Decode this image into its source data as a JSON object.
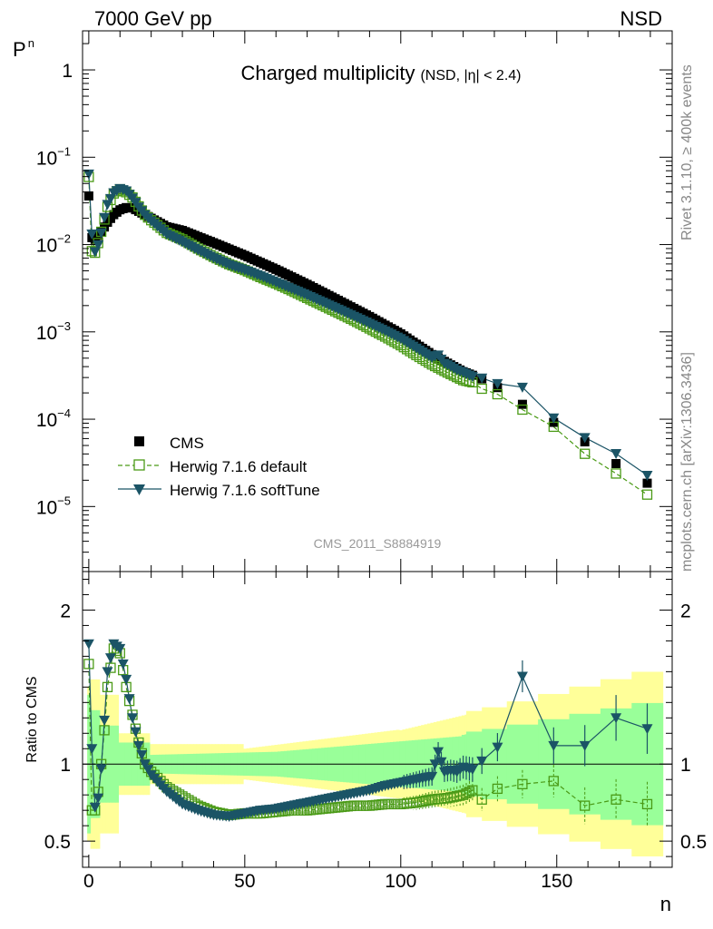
{
  "header": {
    "left": "7000 GeV pp",
    "right": "NSD"
  },
  "side_labels": {
    "rivet": "Rivet 3.1.10, ≥ 400k events",
    "mcplots": "mcplots.cern.ch [arXiv:1306.3436]"
  },
  "chart_data": {
    "type": "scatter",
    "title": "Charged multiplicity",
    "subtitle": "(NSD, |η| < 2.4)",
    "analysis_tag": "CMS_2011_S8884919",
    "xlabel": "n",
    "ylabel_main": "P",
    "ylabel_main_sub": "n",
    "ylabel_ratio": "Ratio to CMS",
    "xlim": [
      -2,
      187
    ],
    "ylim_main": [
      1.8e-06,
      2.8
    ],
    "ylim_ratio": [
      0.33,
      2.25
    ],
    "log_y_main": true,
    "x_ticks": [
      "0",
      "50",
      "100",
      "150"
    ],
    "y_ticks_main": [
      {
        "mant": "10",
        "exp": "−5",
        "value": 1e-05
      },
      {
        "mant": "10",
        "exp": "−4",
        "value": 0.0001
      },
      {
        "mant": "10",
        "exp": "−3",
        "value": 0.001
      },
      {
        "mant": "10",
        "exp": "−2",
        "value": 0.01
      },
      {
        "mant": "10",
        "exp": "−1",
        "value": 0.1
      },
      {
        "mant": "1",
        "exp": "",
        "value": 1
      }
    ],
    "y_ticks_ratio": [
      "0.5",
      "1",
      "2"
    ],
    "legend": {
      "placement": "lower-left",
      "entries": [
        "CMS",
        "Herwig 7.1.6 default",
        "Herwig 7.1.6 softTune"
      ]
    },
    "colors": {
      "cms": "#000000",
      "default": "#4a9a16",
      "soft": "#1b5466",
      "band_inner": "#99ff99",
      "band_outer": "#ffff99"
    },
    "cms_anchors": {
      "x": [
        0,
        1,
        2,
        4,
        6,
        8,
        10,
        12,
        14,
        16,
        20,
        25,
        30,
        40,
        50,
        60,
        70,
        80,
        90,
        100,
        110,
        120,
        126,
        131,
        139,
        149,
        159,
        169,
        179
      ],
      "y": [
        0.036,
        0.012,
        0.0115,
        0.014,
        0.018,
        0.022,
        0.025,
        0.0265,
        0.0262,
        0.024,
        0.02,
        0.016,
        0.0145,
        0.0105,
        0.0075,
        0.0052,
        0.0035,
        0.0023,
        0.0015,
        0.00095,
        0.00055,
        0.00035,
        0.00029,
        0.00023,
        0.000148,
        9.2e-05,
        5.5e-05,
        3.1e-05,
        1.85e-05
      ]
    },
    "ratio_default_anchors": {
      "x": [
        0,
        1,
        2,
        3,
        4,
        5,
        6,
        8,
        10,
        12,
        14,
        16,
        18,
        20,
        25,
        30,
        35,
        40,
        45,
        50,
        55,
        60,
        65,
        70,
        75,
        80,
        85,
        90,
        95,
        100,
        105,
        110,
        115,
        120,
        124,
        126,
        131,
        139,
        149,
        159,
        169,
        179
      ],
      "y": [
        1.65,
        0.7,
        0.7,
        0.82,
        1.0,
        1.22,
        1.5,
        1.75,
        1.72,
        1.5,
        1.32,
        1.14,
        1.0,
        0.95,
        0.85,
        0.79,
        0.73,
        0.69,
        0.67,
        0.68,
        0.68,
        0.69,
        0.7,
        0.7,
        0.71,
        0.72,
        0.73,
        0.73,
        0.74,
        0.74,
        0.75,
        0.77,
        0.78,
        0.8,
        0.84,
        0.77,
        0.84,
        0.87,
        0.89,
        0.73,
        0.77,
        0.74
      ]
    },
    "ratio_soft_anchors": {
      "x": [
        0,
        1,
        2,
        3,
        4,
        6,
        8,
        10,
        12,
        14,
        16,
        18,
        20,
        25,
        30,
        35,
        40,
        45,
        50,
        55,
        60,
        65,
        70,
        75,
        80,
        85,
        90,
        95,
        100,
        105,
        110,
        112,
        114,
        116,
        118,
        120,
        124,
        126,
        131,
        139,
        149,
        159,
        169,
        179
      ],
      "y": [
        1.78,
        1.1,
        0.72,
        0.78,
        0.97,
        1.6,
        1.78,
        1.75,
        1.55,
        1.3,
        1.12,
        1.0,
        0.93,
        0.82,
        0.74,
        0.7,
        0.67,
        0.66,
        0.68,
        0.7,
        0.71,
        0.73,
        0.75,
        0.77,
        0.79,
        0.81,
        0.83,
        0.86,
        0.88,
        0.9,
        0.92,
        1.08,
        0.95,
        0.96,
        0.95,
        0.98,
        0.96,
        1.02,
        1.11,
        1.57,
        1.12,
        1.12,
        1.3,
        1.23
      ]
    }
  }
}
